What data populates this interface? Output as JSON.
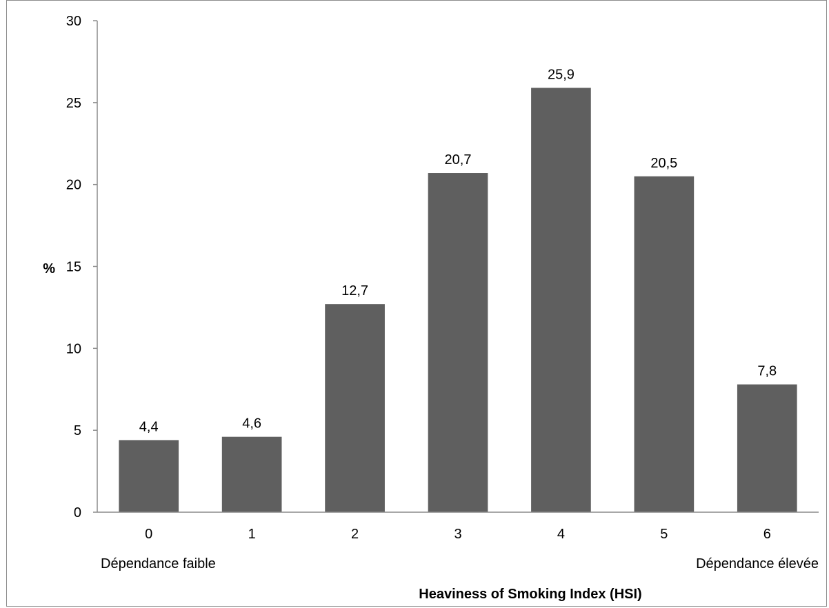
{
  "chart_data": {
    "type": "bar",
    "categories": [
      "0",
      "1",
      "2",
      "3",
      "4",
      "5",
      "6"
    ],
    "values": [
      4.4,
      4.6,
      12.7,
      20.7,
      25.9,
      20.5,
      7.8
    ],
    "data_labels": [
      "4,4",
      "4,6",
      "12,7",
      "20,7",
      "25,9",
      "20,5",
      "7,8"
    ],
    "ylabel": "%",
    "xlabel": "Heaviness of Smoking Index (HSI)",
    "ylim": [
      0,
      30
    ],
    "yticks": [
      0,
      5,
      10,
      15,
      20,
      25,
      30
    ],
    "low_end_note": "Dépendance faible",
    "high_end_note": "Dépendance élevée",
    "bar_color": "#5f5f5f",
    "grid": false,
    "legend": "none"
  }
}
